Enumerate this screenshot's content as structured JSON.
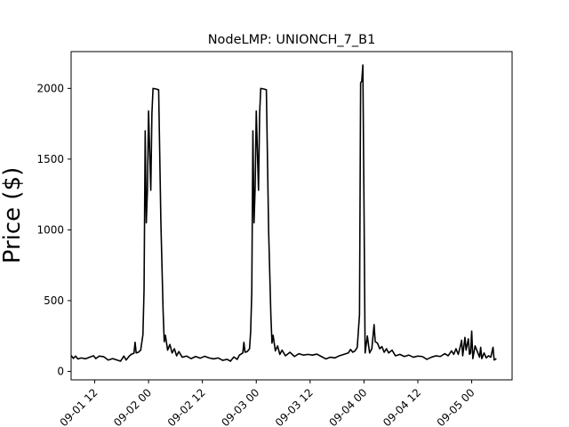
{
  "chart_data": {
    "type": "line",
    "title": "NodeLMP: UNIONCH_7_B1",
    "xlabel": "",
    "ylabel": "Price ($)",
    "x_domain": [
      "09-01 06:45",
      "09-05 09:00"
    ],
    "ylim": [
      -60,
      2260
    ],
    "grid": false,
    "x_ticks": [
      {
        "at": "09-01 12:00",
        "label": "09-01 12"
      },
      {
        "at": "09-02 00:00",
        "label": "09-02 00"
      },
      {
        "at": "09-02 12:00",
        "label": "09-02 12"
      },
      {
        "at": "09-03 00:00",
        "label": "09-03 00"
      },
      {
        "at": "09-03 12:00",
        "label": "09-03 12"
      },
      {
        "at": "09-04 00:00",
        "label": "09-04 00"
      },
      {
        "at": "09-04 12:00",
        "label": "09-04 12"
      },
      {
        "at": "09-05 00:00",
        "label": "09-05 00"
      }
    ],
    "y_ticks": [
      0,
      500,
      1000,
      1500,
      2000
    ],
    "series": [
      {
        "color": "#000000",
        "points": [
          [
            "09-01 06:45",
            112
          ],
          [
            "09-01 07:15",
            92
          ],
          [
            "09-01 07:45",
            108
          ],
          [
            "09-01 08:15",
            88
          ],
          [
            "09-01 09:00",
            95
          ],
          [
            "09-01 10:00",
            89
          ],
          [
            "09-01 11:00",
            102
          ],
          [
            "09-01 11:45",
            110
          ],
          [
            "09-01 12:15",
            90
          ],
          [
            "09-01 13:00",
            108
          ],
          [
            "09-01 14:00",
            104
          ],
          [
            "09-01 15:00",
            80
          ],
          [
            "09-01 16:00",
            90
          ],
          [
            "09-01 17:00",
            80
          ],
          [
            "09-01 17:45",
            72
          ],
          [
            "09-01 18:30",
            108
          ],
          [
            "09-01 19:00",
            80
          ],
          [
            "09-01 19:45",
            110
          ],
          [
            "09-01 20:15",
            122
          ],
          [
            "09-01 20:45",
            128
          ],
          [
            "09-01 21:00",
            205
          ],
          [
            "09-01 21:15",
            130
          ],
          [
            "09-01 21:45",
            135
          ],
          [
            "09-01 22:15",
            150
          ],
          [
            "09-01 22:45",
            260
          ],
          [
            "09-01 23:00",
            580
          ],
          [
            "09-01 23:15",
            1700
          ],
          [
            "09-01 23:30",
            1050
          ],
          [
            "09-01 23:45",
            1280
          ],
          [
            "09-02 00:00",
            1840
          ],
          [
            "09-02 00:30",
            1280
          ],
          [
            "09-02 00:45",
            1820
          ],
          [
            "09-02 01:00",
            2000
          ],
          [
            "09-02 01:45",
            1995
          ],
          [
            "09-02 02:15",
            1990
          ],
          [
            "09-02 02:45",
            1050
          ],
          [
            "09-02 03:15",
            420
          ],
          [
            "09-02 03:30",
            210
          ],
          [
            "09-02 03:45",
            255
          ],
          [
            "09-02 04:15",
            150
          ],
          [
            "09-02 04:45",
            190
          ],
          [
            "09-02 05:15",
            130
          ],
          [
            "09-02 05:45",
            160
          ],
          [
            "09-02 06:15",
            110
          ],
          [
            "09-02 06:45",
            140
          ],
          [
            "09-02 07:30",
            100
          ],
          [
            "09-02 08:30",
            108
          ],
          [
            "09-02 09:30",
            90
          ],
          [
            "09-02 10:30",
            105
          ],
          [
            "09-02 11:30",
            93
          ],
          [
            "09-02 12:30",
            107
          ],
          [
            "09-02 13:30",
            95
          ],
          [
            "09-02 14:30",
            88
          ],
          [
            "09-02 15:30",
            95
          ],
          [
            "09-02 16:30",
            78
          ],
          [
            "09-02 17:30",
            85
          ],
          [
            "09-02 18:15",
            72
          ],
          [
            "09-02 19:00",
            102
          ],
          [
            "09-02 19:45",
            85
          ],
          [
            "09-02 20:15",
            115
          ],
          [
            "09-02 21:00",
            130
          ],
          [
            "09-02 21:15",
            205
          ],
          [
            "09-02 21:30",
            135
          ],
          [
            "09-02 22:00",
            140
          ],
          [
            "09-02 22:30",
            160
          ],
          [
            "09-02 22:45",
            280
          ],
          [
            "09-02 23:00",
            560
          ],
          [
            "09-02 23:15",
            1700
          ],
          [
            "09-02 23:30",
            1050
          ],
          [
            "09-02 23:45",
            1300
          ],
          [
            "09-03 00:00",
            1840
          ],
          [
            "09-03 00:30",
            1280
          ],
          [
            "09-03 00:45",
            1820
          ],
          [
            "09-03 01:00",
            2000
          ],
          [
            "09-03 01:45",
            1995
          ],
          [
            "09-03 02:15",
            1990
          ],
          [
            "09-03 02:45",
            1000
          ],
          [
            "09-03 03:15",
            400
          ],
          [
            "09-03 03:30",
            200
          ],
          [
            "09-03 03:45",
            255
          ],
          [
            "09-03 04:15",
            145
          ],
          [
            "09-03 04:45",
            180
          ],
          [
            "09-03 05:15",
            120
          ],
          [
            "09-03 05:45",
            150
          ],
          [
            "09-03 06:30",
            110
          ],
          [
            "09-03 07:30",
            135
          ],
          [
            "09-03 08:30",
            105
          ],
          [
            "09-03 09:30",
            125
          ],
          [
            "09-03 10:30",
            115
          ],
          [
            "09-03 11:30",
            120
          ],
          [
            "09-03 12:30",
            115
          ],
          [
            "09-03 13:30",
            122
          ],
          [
            "09-03 14:30",
            105
          ],
          [
            "09-03 15:30",
            88
          ],
          [
            "09-03 16:30",
            100
          ],
          [
            "09-03 17:30",
            95
          ],
          [
            "09-03 18:30",
            110
          ],
          [
            "09-03 19:30",
            120
          ],
          [
            "09-03 20:30",
            130
          ],
          [
            "09-03 21:00",
            155
          ],
          [
            "09-03 21:30",
            135
          ],
          [
            "09-03 22:00",
            145
          ],
          [
            "09-03 22:30",
            170
          ],
          [
            "09-03 23:00",
            400
          ],
          [
            "09-03 23:15",
            2040
          ],
          [
            "09-03 23:30",
            2050
          ],
          [
            "09-03 23:45",
            2165
          ],
          [
            "09-04 00:00",
            1200
          ],
          [
            "09-04 00:15",
            130
          ],
          [
            "09-04 00:45",
            250
          ],
          [
            "09-04 01:15",
            130
          ],
          [
            "09-04 01:45",
            160
          ],
          [
            "09-04 02:15",
            330
          ],
          [
            "09-04 02:30",
            210
          ],
          [
            "09-04 03:00",
            200
          ],
          [
            "09-04 03:30",
            160
          ],
          [
            "09-04 04:00",
            175
          ],
          [
            "09-04 04:30",
            135
          ],
          [
            "09-04 05:00",
            160
          ],
          [
            "09-04 05:30",
            130
          ],
          [
            "09-04 06:15",
            150
          ],
          [
            "09-04 07:00",
            110
          ],
          [
            "09-04 08:00",
            120
          ],
          [
            "09-04 09:00",
            105
          ],
          [
            "09-04 10:00",
            115
          ],
          [
            "09-04 11:00",
            100
          ],
          [
            "09-04 12:00",
            108
          ],
          [
            "09-04 13:00",
            105
          ],
          [
            "09-04 14:00",
            85
          ],
          [
            "09-04 15:00",
            100
          ],
          [
            "09-04 16:00",
            110
          ],
          [
            "09-04 17:00",
            105
          ],
          [
            "09-04 18:00",
            125
          ],
          [
            "09-04 18:45",
            110
          ],
          [
            "09-04 19:30",
            145
          ],
          [
            "09-04 20:00",
            120
          ],
          [
            "09-04 20:30",
            160
          ],
          [
            "09-04 21:00",
            120
          ],
          [
            "09-04 21:30",
            180
          ],
          [
            "09-04 21:45",
            220
          ],
          [
            "09-04 22:00",
            110
          ],
          [
            "09-04 22:30",
            240
          ],
          [
            "09-04 22:45",
            150
          ],
          [
            "09-04 23:15",
            230
          ],
          [
            "09-04 23:30",
            120
          ],
          [
            "09-04 23:45",
            130
          ],
          [
            "09-05 00:00",
            285
          ],
          [
            "09-05 00:15",
            90
          ],
          [
            "09-05 00:45",
            180
          ],
          [
            "09-05 01:15",
            140
          ],
          [
            "09-05 01:45",
            100
          ],
          [
            "09-05 02:00",
            170
          ],
          [
            "09-05 02:15",
            90
          ],
          [
            "09-05 02:45",
            130
          ],
          [
            "09-05 03:15",
            95
          ],
          [
            "09-05 03:45",
            110
          ],
          [
            "09-05 04:15",
            100
          ],
          [
            "09-05 04:45",
            170
          ],
          [
            "09-05 05:00",
            80
          ],
          [
            "09-05 05:30",
            90
          ]
        ]
      }
    ]
  }
}
